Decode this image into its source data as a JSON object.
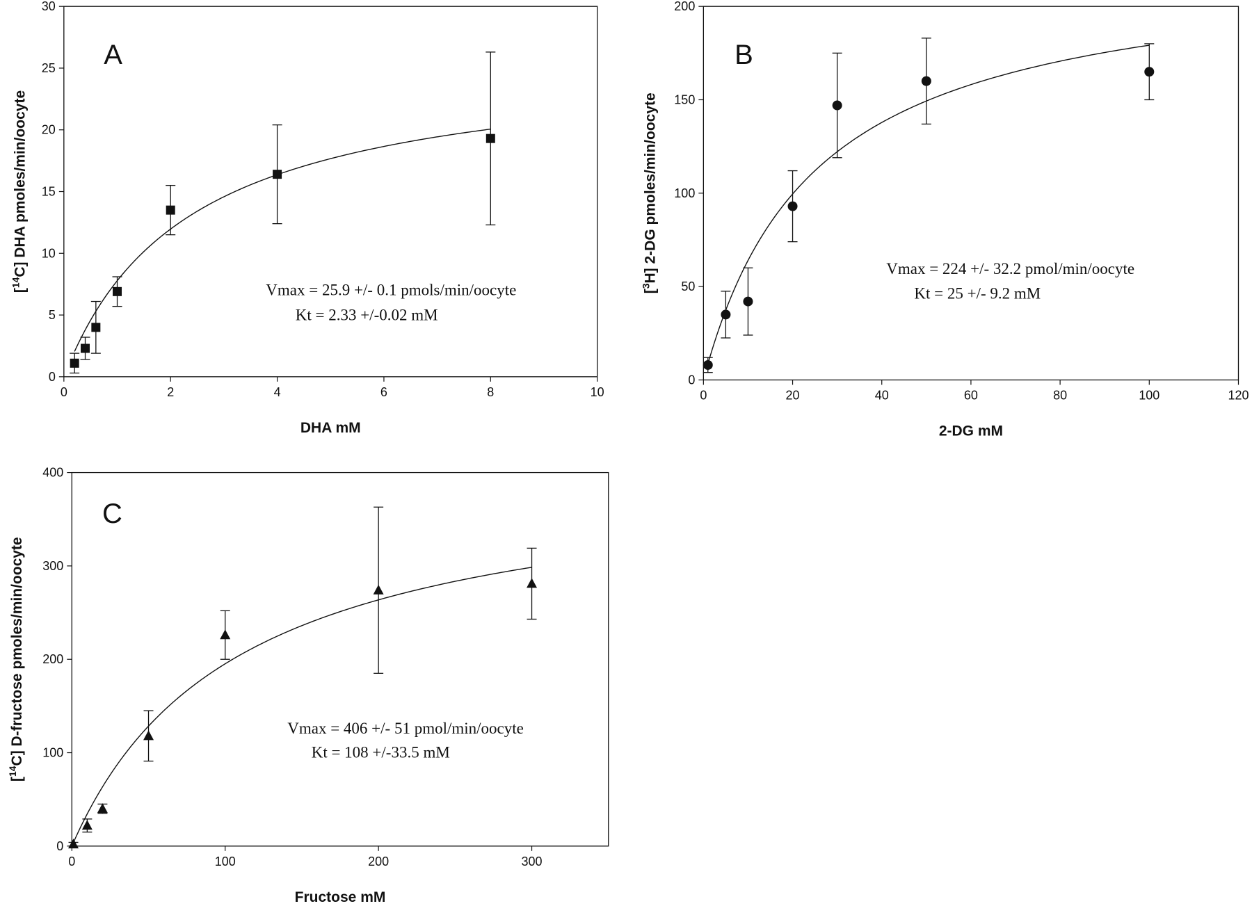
{
  "chart_data": [
    {
      "type": "scatter",
      "panel_label": "A",
      "xlabel": "DHA mM",
      "ylabel": {
        "pre": "[",
        "sup": "14",
        "post": "C] DHA pmoles/min/oocyte"
      },
      "x": [
        0.2,
        0.4,
        0.6,
        1,
        2,
        4,
        8
      ],
      "series": [
        {
          "values": [
            1.1,
            2.3,
            4.0,
            6.9,
            13.5,
            16.4,
            19.3
          ],
          "errors": [
            0.8,
            0.9,
            2.1,
            1.2,
            2.0,
            4.0,
            7.0
          ],
          "color": "#111111",
          "marker": "square"
        }
      ],
      "fit": {
        "vmax": 25.9,
        "kt": 2.33
      },
      "annotations": [
        "Vmax =  25.9 +/- 0.1 pmols/min/oocyte",
        "Kt =   2.33 +/-0.02 mM"
      ],
      "xlim": [
        0,
        10
      ],
      "xticks": [
        0,
        2,
        4,
        6,
        8,
        10
      ],
      "ylim": [
        0,
        30
      ],
      "yticks": [
        0,
        5,
        10,
        15,
        20,
        25,
        30
      ]
    },
    {
      "type": "scatter",
      "panel_label": "B",
      "xlabel": "2-DG mM",
      "ylabel": {
        "pre": "[",
        "sup": "3",
        "post": "H] 2-DG pmoles/min/oocyte"
      },
      "x": [
        1,
        5,
        10,
        20,
        30,
        50,
        100
      ],
      "series": [
        {
          "values": [
            8,
            35,
            42,
            93,
            147,
            160,
            165
          ],
          "errors": [
            4,
            12.5,
            18,
            19,
            28,
            23,
            15
          ],
          "color": "#111111",
          "marker": "circle"
        }
      ],
      "fit": {
        "vmax": 224,
        "kt": 25
      },
      "annotations": [
        "Vmax = 224 +/- 32.2 pmol/min/oocyte",
        "Kt =  25 +/- 9.2 mM"
      ],
      "xlim": [
        0,
        120
      ],
      "xticks": [
        0,
        20,
        40,
        60,
        80,
        100,
        120
      ],
      "ylim": [
        0,
        200
      ],
      "yticks": [
        0,
        50,
        100,
        150,
        200
      ]
    },
    {
      "type": "scatter",
      "panel_label": "C",
      "xlabel": "Fructose mM",
      "ylabel": {
        "pre": "[",
        "sup": "14",
        "post": "C] D-fructose pmoles/min/oocyte"
      },
      "x": [
        1,
        10,
        20,
        50,
        100,
        200,
        300
      ],
      "series": [
        {
          "values": [
            2,
            22,
            40,
            118,
            226,
            274,
            281
          ],
          "errors": [
            2,
            7,
            5,
            27,
            26,
            89,
            38
          ],
          "color": "#111111",
          "marker": "triangle"
        }
      ],
      "fit": {
        "vmax": 406,
        "kt": 108
      },
      "annotations": [
        "Vmax = 406 +/- 51 pmol/min/oocyte",
        "Kt = 108 +/-33.5 mM"
      ],
      "xlim": [
        0,
        350
      ],
      "xticks": [
        0,
        100,
        200,
        300
      ],
      "ylim": [
        0,
        400
      ],
      "yticks": [
        0,
        100,
        200,
        300,
        400
      ]
    }
  ]
}
